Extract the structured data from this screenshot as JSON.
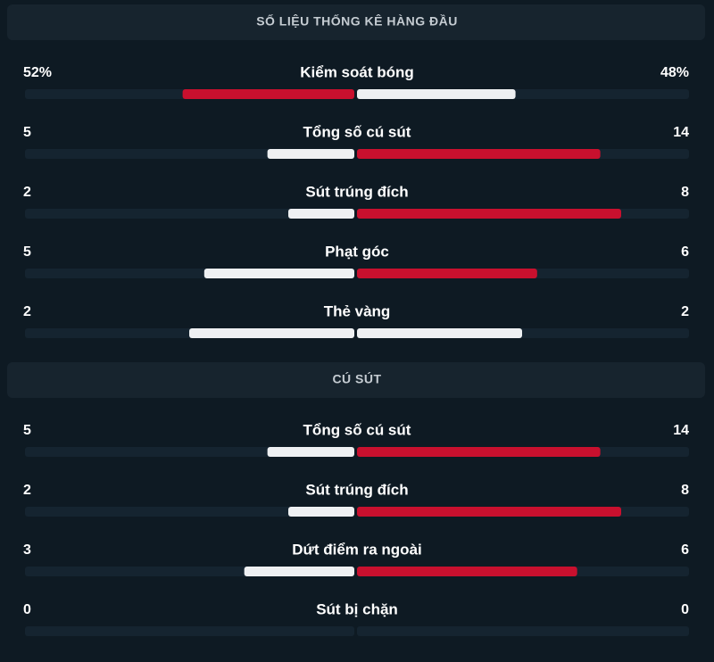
{
  "sections": [
    {
      "title": "SỐ LIỆU THỐNG KÊ HÀNG ĐẦU",
      "rows": [
        {
          "label": "Kiểm soát bóng",
          "home": 52,
          "away": 48,
          "home_label": "52%",
          "away_label": "48%"
        },
        {
          "label": "Tổng số cú sút",
          "home": 5,
          "away": 14
        },
        {
          "label": "Sút trúng đích",
          "home": 2,
          "away": 8
        },
        {
          "label": "Phạt góc",
          "home": 5,
          "away": 6
        },
        {
          "label": "Thẻ vàng",
          "home": 2,
          "away": 2
        }
      ]
    },
    {
      "title": "CÚ SÚT",
      "rows": [
        {
          "label": "Tổng số cú sút",
          "home": 5,
          "away": 14
        },
        {
          "label": "Sút trúng đích",
          "home": 2,
          "away": 8
        },
        {
          "label": "Dứt điểm ra ngoài",
          "home": 3,
          "away": 6
        },
        {
          "label": "Sút bị chặn",
          "home": 0,
          "away": 0
        }
      ]
    }
  ]
}
